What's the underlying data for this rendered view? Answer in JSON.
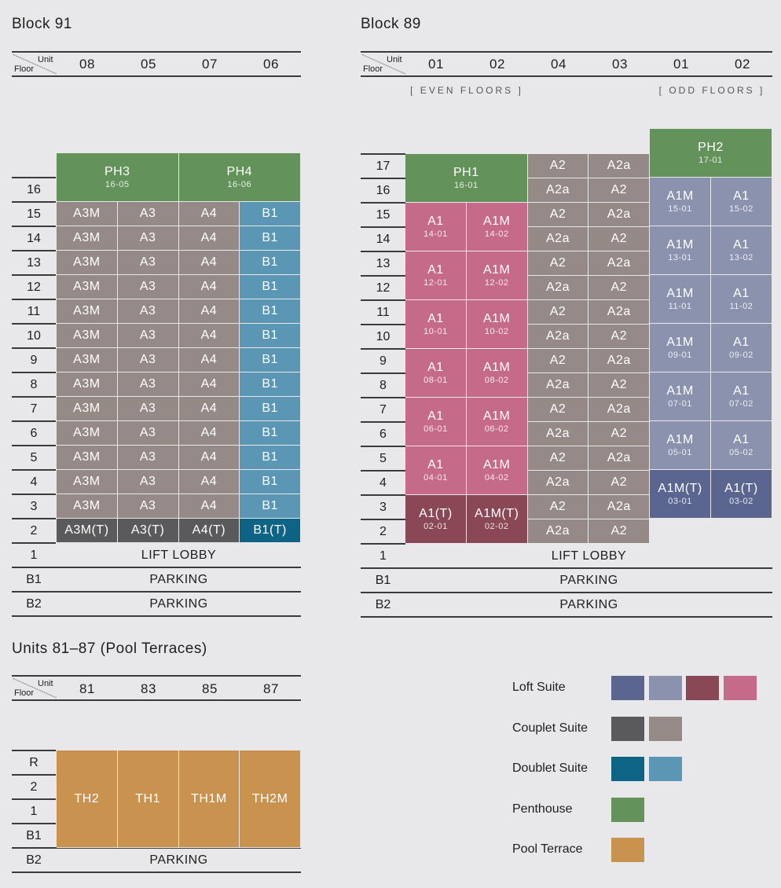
{
  "corner": {
    "unit": "Unit",
    "floor": "Floor"
  },
  "block91": {
    "title": "Block 91",
    "units": [
      "08",
      "05",
      "07",
      "06"
    ],
    "floors": [
      "16",
      "15",
      "14",
      "13",
      "12",
      "11",
      "10",
      "9",
      "8",
      "7",
      "6",
      "5",
      "4",
      "3",
      "2",
      "1",
      "B1",
      "B2"
    ],
    "penthouses": [
      {
        "name": "PH3",
        "code": "16-05"
      },
      {
        "name": "PH4",
        "code": "16-06"
      }
    ],
    "typical": [
      "A3M",
      "A3",
      "A4",
      "B1"
    ],
    "second": [
      "A3M(T)",
      "A3(T)",
      "A4(T)",
      "B1(T)"
    ],
    "levels": {
      "l1": "LIFT LOBBY",
      "b1": "PARKING",
      "b2": "PARKING"
    }
  },
  "block89": {
    "title": "Block 89",
    "units": [
      "01",
      "02",
      "04",
      "03",
      "01",
      "02"
    ],
    "even_note": "[ EVEN FLOORS ]",
    "odd_note": "[ ODD FLOORS ]",
    "floors": [
      "17",
      "16",
      "15",
      "14",
      "13",
      "12",
      "11",
      "10",
      "9",
      "8",
      "7",
      "6",
      "5",
      "4",
      "3",
      "2",
      "1",
      "B1",
      "B2"
    ],
    "ph1": {
      "name": "PH1",
      "code": "16-01"
    },
    "ph2": {
      "name": "PH2",
      "code": "17-01"
    },
    "pink": [
      {
        "a": "A1",
        "ac": "14-01",
        "b": "A1M",
        "bc": "14-02"
      },
      {
        "a": "A1",
        "ac": "12-01",
        "b": "A1M",
        "bc": "12-02"
      },
      {
        "a": "A1",
        "ac": "10-01",
        "b": "A1M",
        "bc": "10-02"
      },
      {
        "a": "A1",
        "ac": "08-01",
        "b": "A1M",
        "bc": "08-02"
      },
      {
        "a": "A1",
        "ac": "06-01",
        "b": "A1M",
        "bc": "06-02"
      },
      {
        "a": "A1",
        "ac": "04-01",
        "b": "A1M",
        "bc": "04-02"
      },
      {
        "a": "A1(T)",
        "ac": "02-01",
        "b": "A1M(T)",
        "bc": "02-02"
      }
    ],
    "grey_pairs": [
      [
        "A2",
        "A2a"
      ],
      [
        "A2a",
        "A2"
      ]
    ],
    "blue": [
      {
        "a": "A1M",
        "ac": "15-01",
        "b": "A1",
        "bc": "15-02"
      },
      {
        "a": "A1M",
        "ac": "13-01",
        "b": "A1",
        "bc": "13-02"
      },
      {
        "a": "A1M",
        "ac": "11-01",
        "b": "A1",
        "bc": "11-02"
      },
      {
        "a": "A1M",
        "ac": "09-01",
        "b": "A1",
        "bc": "09-02"
      },
      {
        "a": "A1M",
        "ac": "07-01",
        "b": "A1",
        "bc": "07-02"
      },
      {
        "a": "A1M",
        "ac": "05-01",
        "b": "A1",
        "bc": "05-02"
      },
      {
        "a": "A1M(T)",
        "ac": "03-01",
        "b": "A1(T)",
        "bc": "03-02"
      }
    ],
    "levels": {
      "l1": "LIFT LOBBY",
      "b1": "PARKING",
      "b2": "PARKING"
    }
  },
  "pool": {
    "title": "Units 81–87 (Pool Terraces)",
    "units": [
      "81",
      "83",
      "85",
      "87"
    ],
    "floors": [
      "R",
      "2",
      "1",
      "B1",
      "B2"
    ],
    "cells": [
      "TH2",
      "TH1",
      "TH1M",
      "TH2M"
    ],
    "b2": "PARKING"
  },
  "legend": [
    {
      "label": "Loft Suite",
      "colors": [
        "#5a6690",
        "#8a92ae",
        "#8a4755",
        "#c56a89"
      ]
    },
    {
      "label": "Couplet Suite",
      "colors": [
        "#5a5a5c",
        "#968a89"
      ]
    },
    {
      "label": "Doublet Suite",
      "colors": [
        "#0e6485",
        "#5b97b4"
      ]
    },
    {
      "label": "Penthouse",
      "colors": [
        "#63925a"
      ]
    },
    {
      "label": "Pool Terrace",
      "colors": [
        "#c9924f"
      ]
    }
  ],
  "colors": {
    "penthouse": "#63925a",
    "couplet_light": "#968a89",
    "couplet_dark": "#5a5a5c",
    "doublet_light": "#5b97b4",
    "doublet_dark": "#0e6485",
    "loft_pink": "#c56a89",
    "loft_maroon": "#8a4755",
    "loft_blue_light": "#8a92ae",
    "loft_blue_dark": "#5a6690",
    "pool": "#c9924f"
  }
}
